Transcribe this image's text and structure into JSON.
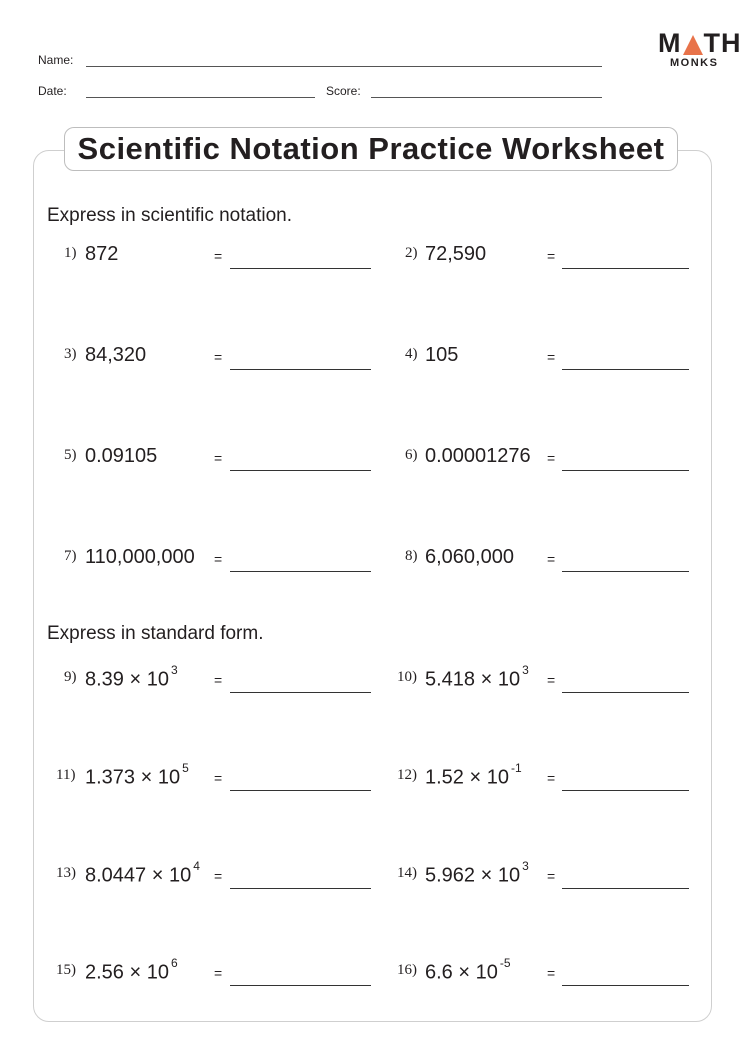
{
  "header": {
    "name_label": "Name:",
    "date_label": "Date:",
    "score_label": "Score:"
  },
  "logo": {
    "text_top": "MATH",
    "text_bottom": "MONKS",
    "accent": "#e8734a"
  },
  "title": "Scientific Notation Practice Worksheet",
  "sections": [
    {
      "instruction": "Express in scientific notation.",
      "problems": [
        {
          "num": "1)",
          "value": "872"
        },
        {
          "num": "2)",
          "value": "72,590"
        },
        {
          "num": "3)",
          "value": "84,320"
        },
        {
          "num": "4)",
          "value": "105"
        },
        {
          "num": "5)",
          "value": "0.09105"
        },
        {
          "num": "6)",
          "value": "0.00001276"
        },
        {
          "num": "7)",
          "value": "110,000,000"
        },
        {
          "num": "8)",
          "value": "6,060,000"
        }
      ]
    },
    {
      "instruction": "Express in standard form.",
      "problems": [
        {
          "num": "9)",
          "value": "8.39 × 10",
          "exp": "3"
        },
        {
          "num": "10)",
          "value": "5.418 × 10",
          "exp": "3"
        },
        {
          "num": "11)",
          "value": "1.373 × 10",
          "exp": "5"
        },
        {
          "num": "12)",
          "value": "1.52 × 10",
          "exp": "-1"
        },
        {
          "num": "13)",
          "value": "8.0447 × 10",
          "exp": "4"
        },
        {
          "num": "14)",
          "value": "5.962 × 10",
          "exp": "3"
        },
        {
          "num": "15)",
          "value": "2.56 × 10",
          "exp": "6"
        },
        {
          "num": "16)",
          "value": "6.6 × 10",
          "exp": "-5"
        }
      ]
    }
  ],
  "equals_sign": "="
}
